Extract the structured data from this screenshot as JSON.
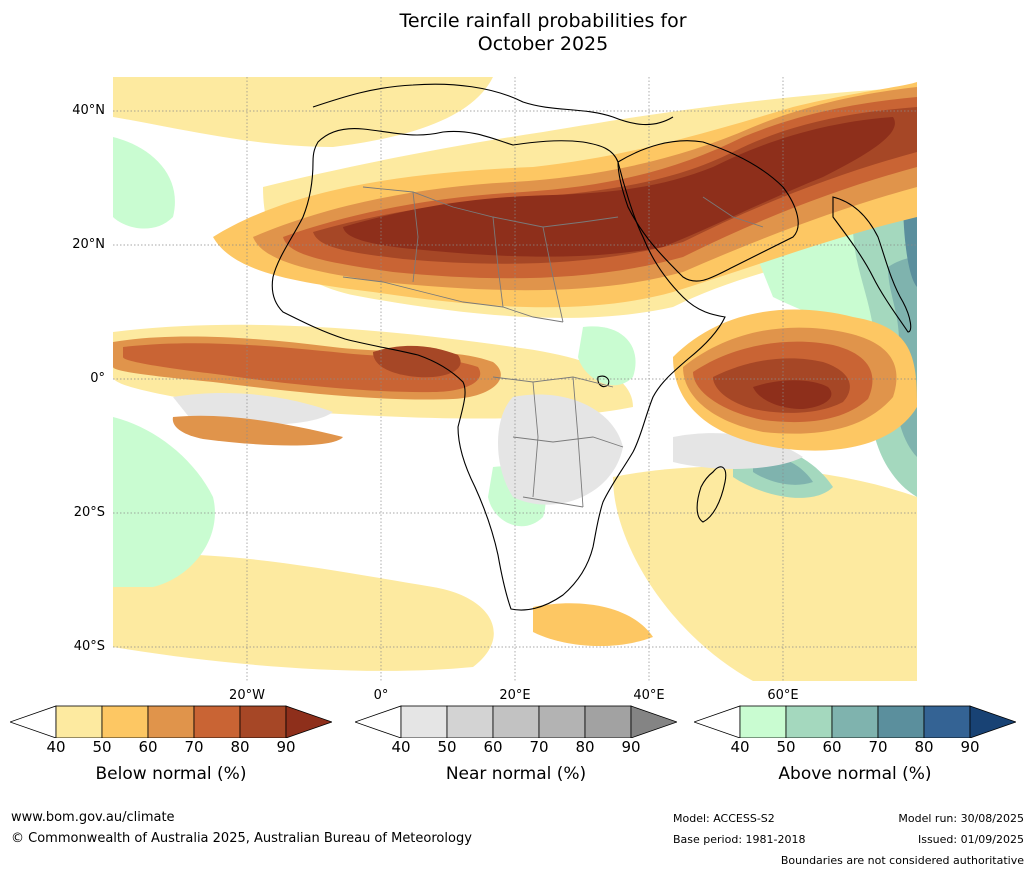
{
  "title": {
    "line1": "Tercile rainfall probabilities for",
    "line2": "October 2025"
  },
  "map": {
    "lat_labels": [
      "40°N",
      "20°N",
      "0°",
      "20°S",
      "40°S"
    ],
    "lon_labels": [
      "20°W",
      "0°",
      "20°E",
      "40°E",
      "60°E"
    ]
  },
  "legends": [
    {
      "name": "below-normal",
      "caption": "Below normal (%)",
      "ticks": [
        "40",
        "50",
        "60",
        "70",
        "80",
        "90"
      ],
      "colors": [
        "#ffffff",
        "#fdeaa0",
        "#fdc763",
        "#e0944b",
        "#c96434",
        "#a64726",
        "#8e2f1b"
      ]
    },
    {
      "name": "near-normal",
      "caption": "Near normal (%)",
      "ticks": [
        "40",
        "50",
        "60",
        "70",
        "80",
        "90"
      ],
      "colors": [
        "#ffffff",
        "#e5e5e5",
        "#d3d3d3",
        "#c2c2c2",
        "#b3b3b3",
        "#a2a2a2",
        "#848484"
      ]
    },
    {
      "name": "above-normal",
      "caption": "Above normal (%)",
      "ticks": [
        "40",
        "50",
        "60",
        "70",
        "80",
        "90"
      ],
      "colors": [
        "#ffffff",
        "#c9fcd1",
        "#a4d8be",
        "#7fb3ae",
        "#5b8f9d",
        "#346394",
        "#184274"
      ]
    }
  ],
  "footer": {
    "website": "www.bom.gov.au/climate",
    "copyright": "© Commonwealth of Australia 2025, Australian Bureau of Meteorology",
    "model": "Model: ACCESS-S2",
    "base_period": "Base period: 1981-2018",
    "model_run": "Model run: 30/08/2025",
    "issued": "Issued: 01/09/2025",
    "disclaimer": "Boundaries are not considered authoritative"
  }
}
